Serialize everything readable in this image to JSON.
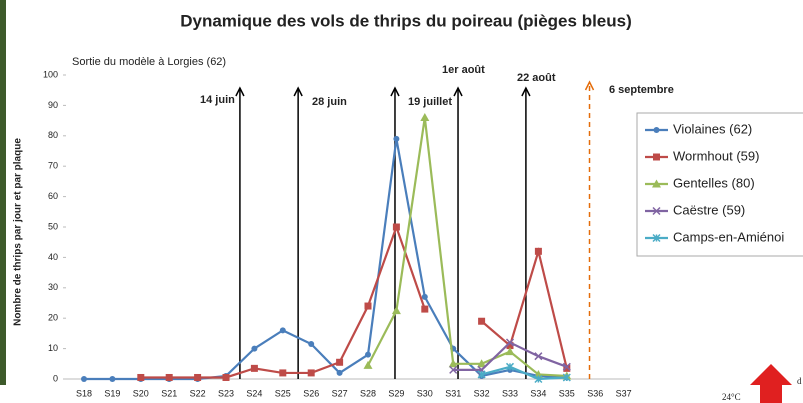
{
  "chart_data": {
    "type": "line",
    "title": "Dynamique des vols de thrips du poireau (pièges bleus)",
    "subtitle": "Sortie du modèle à Lorgies (62)",
    "y_label": "Nombre de thrips par jour et par plaque",
    "categories": [
      "S18",
      "S19",
      "S20",
      "S21",
      "S22",
      "S23",
      "S24",
      "S25",
      "S26",
      "S27",
      "S28",
      "S29",
      "S30",
      "S31",
      "S32",
      "S33",
      "S34",
      "S35",
      "S36",
      "S37"
    ],
    "ylim": [
      0,
      100
    ],
    "yticks": [
      0,
      10,
      20,
      30,
      40,
      50,
      60,
      70,
      80,
      90,
      100
    ],
    "grid": false,
    "legend": "right",
    "series": [
      {
        "name": "Violaines (62)",
        "color": "#4a7ebb",
        "marker": "circle",
        "values": [
          0,
          0,
          0,
          0,
          0,
          1,
          10,
          16,
          11.5,
          2,
          8,
          79,
          27,
          10,
          1,
          3,
          1,
          0.5,
          null,
          null
        ]
      },
      {
        "name": "Wormhout (59)",
        "color": "#be4b48",
        "marker": "square",
        "values": [
          null,
          null,
          0.5,
          0.5,
          0.5,
          0.5,
          3.5,
          2,
          2,
          5.5,
          24,
          50,
          23,
          null,
          19,
          11,
          42,
          3.5,
          null,
          null
        ]
      },
      {
        "name": "Gentelles (80)",
        "color": "#9bbb59",
        "marker": "triangle",
        "values": [
          null,
          null,
          null,
          null,
          null,
          null,
          null,
          null,
          null,
          null,
          4.5,
          22.5,
          86,
          5,
          5,
          9,
          1.5,
          1,
          null,
          null
        ]
      },
      {
        "name": "Caëstre (59)",
        "color": "#8064a2",
        "marker": "x",
        "values": [
          null,
          null,
          null,
          null,
          null,
          null,
          null,
          null,
          null,
          null,
          null,
          null,
          null,
          3,
          3,
          12,
          7.5,
          4,
          null,
          null
        ]
      },
      {
        "name": "Camps-en-Amiénoi",
        "color": "#4bacc6",
        "marker": "star",
        "values": [
          null,
          null,
          null,
          null,
          null,
          null,
          null,
          null,
          null,
          null,
          null,
          null,
          null,
          null,
          1.5,
          4,
          0,
          0.5,
          null,
          null
        ]
      }
    ],
    "annotations": [
      {
        "text": "14 juin",
        "color": "#000000",
        "style": "solid"
      },
      {
        "text": "28 juin",
        "color": "#000000",
        "style": "solid"
      },
      {
        "text": "19 juillet",
        "color": "#000000",
        "style": "solid"
      },
      {
        "text": "1er août",
        "color": "#000000",
        "style": "solid"
      },
      {
        "text": "22 août",
        "color": "#000000",
        "style": "solid"
      },
      {
        "text": "6 septembre",
        "color": "#e46c0a",
        "style": "dashed"
      }
    ],
    "footnote": "24°C",
    "edge_text": "d"
  }
}
